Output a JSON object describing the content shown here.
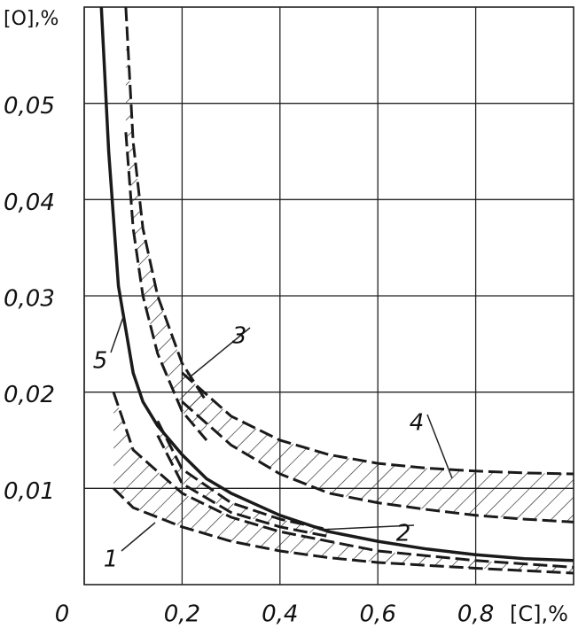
{
  "chart_data": {
    "type": "line",
    "x_label": "[C],%",
    "y_label": "[O],%",
    "xlim": [
      0,
      1.0
    ],
    "ylim": [
      0,
      0.06
    ],
    "xticks": [
      0,
      {
        "value": 0.2,
        "label": "0,2"
      },
      {
        "value": 0.4,
        "label": "0,4"
      },
      {
        "value": 0.6,
        "label": "0,6"
      },
      {
        "value": 0.8,
        "label": "0,8"
      }
    ],
    "yticks": [
      {
        "value": 0.01,
        "label": "0,01"
      },
      {
        "value": 0.02,
        "label": "0,02"
      },
      {
        "value": 0.03,
        "label": "0,03"
      },
      {
        "value": 0.04,
        "label": "0,04"
      },
      {
        "value": 0.05,
        "label": "0,05"
      }
    ],
    "grid": true,
    "color": "#1a1a1a",
    "series": [
      {
        "name": "1",
        "style": "band",
        "x": [
          0.06,
          0.1,
          0.2,
          0.3,
          0.4,
          0.5,
          0.6,
          0.8,
          1.0
        ],
        "upper": [
          0.02,
          0.014,
          0.0095,
          0.007,
          0.0055,
          0.0045,
          0.0035,
          0.0025,
          0.0018
        ],
        "lower": [
          0.01,
          0.008,
          0.006,
          0.0045,
          0.0035,
          0.0028,
          0.0023,
          0.0017,
          0.0012
        ]
      },
      {
        "name": "2",
        "style": "band",
        "x": [
          0.15,
          0.2,
          0.3,
          0.4,
          0.5
        ],
        "upper": [
          0.017,
          0.012,
          0.0085,
          0.0068,
          0.0057
        ],
        "lower": [
          0.0155,
          0.0105,
          0.0075,
          0.006,
          0.005
        ]
      },
      {
        "name": "3",
        "style": "band",
        "x": [
          0.085,
          0.1,
          0.12,
          0.15,
          0.2,
          0.25
        ],
        "upper": [
          0.06,
          0.046,
          0.037,
          0.03,
          0.023,
          0.019
        ],
        "lower": [
          0.047,
          0.037,
          0.03,
          0.024,
          0.018,
          0.015
        ]
      },
      {
        "name": "4",
        "style": "band",
        "x": [
          0.2,
          0.3,
          0.4,
          0.5,
          0.6,
          0.7,
          0.8,
          0.9,
          1.0
        ],
        "upper": [
          0.022,
          0.0175,
          0.015,
          0.0135,
          0.0126,
          0.0121,
          0.0118,
          0.0116,
          0.0115
        ],
        "lower": [
          0.019,
          0.0145,
          0.0115,
          0.0095,
          0.0085,
          0.0078,
          0.0072,
          0.0068,
          0.0065
        ]
      },
      {
        "name": "5",
        "style": "solid",
        "x": [
          0.035,
          0.05,
          0.07,
          0.1,
          0.12,
          0.15,
          0.2,
          0.25,
          0.3,
          0.4,
          0.5,
          0.6,
          0.7,
          0.8,
          0.9,
          1.0
        ],
        "values": [
          0.06,
          0.045,
          0.031,
          0.022,
          0.019,
          0.0165,
          0.0135,
          0.011,
          0.0095,
          0.0072,
          0.0055,
          0.0045,
          0.0037,
          0.0031,
          0.0027,
          0.0025
        ]
      }
    ]
  }
}
